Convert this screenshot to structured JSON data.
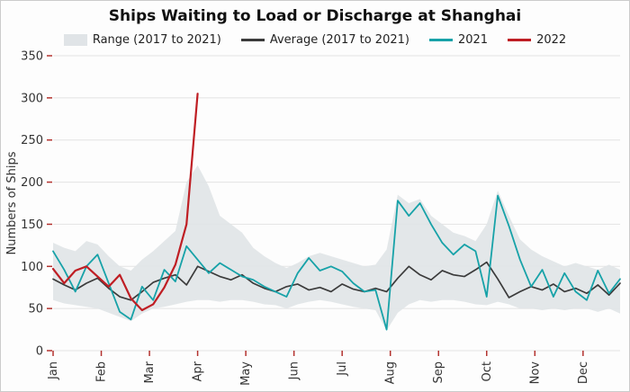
{
  "chart_data": {
    "type": "line",
    "title": "Ships Waiting to Load or Discharge at Shanghai",
    "ylabel": "Numbers of Ships",
    "ylim": [
      0,
      350
    ],
    "yticks": [
      0,
      50,
      100,
      150,
      200,
      250,
      300,
      350
    ],
    "x_tick_labels": [
      "Jan",
      "Feb",
      "Mar",
      "Apr",
      "May",
      "Jun",
      "Jul",
      "Aug",
      "Sep",
      "Oct",
      "Nov",
      "Dec"
    ],
    "legend_position": "top",
    "grid": "horizontal",
    "colors": {
      "band": "#e0e4e7",
      "average": "#3b3b3b",
      "y2021": "#17a2a8",
      "y2022": "#bf1e24",
      "tick": "#b3322e",
      "grid": "#e3e3e3",
      "text": "#333333"
    },
    "band": {
      "name": "Range (2017 to 2021)",
      "max": [
        128,
        122,
        118,
        130,
        126,
        112,
        100,
        95,
        108,
        118,
        130,
        142,
        200,
        220,
        195,
        160,
        150,
        140,
        122,
        112,
        104,
        98,
        104,
        112,
        116,
        112,
        108,
        104,
        100,
        102,
        120,
        185,
        175,
        180,
        160,
        150,
        140,
        136,
        130,
        150,
        190,
        160,
        132,
        120,
        112,
        106,
        100,
        104,
        100,
        96,
        102,
        96
      ],
      "min": [
        60,
        56,
        54,
        52,
        50,
        45,
        40,
        35,
        44,
        50,
        52,
        55,
        58,
        60,
        60,
        58,
        60,
        60,
        58,
        55,
        54,
        50,
        55,
        58,
        60,
        58,
        55,
        52,
        50,
        48,
        24,
        45,
        55,
        60,
        58,
        60,
        60,
        58,
        55,
        54,
        58,
        55,
        50,
        50,
        48,
        50,
        48,
        50,
        50,
        46,
        50,
        44
      ]
    },
    "series": [
      {
        "name": "Average (2017 to 2021)",
        "color_key": "average",
        "width": 1.7,
        "values": [
          85,
          78,
          72,
          80,
          86,
          74,
          64,
          60,
          70,
          81,
          86,
          90,
          78,
          100,
          94,
          88,
          84,
          90,
          80,
          74,
          70,
          76,
          79,
          72,
          75,
          70,
          79,
          73,
          70,
          74,
          70,
          86,
          100,
          90,
          84,
          95,
          90,
          88,
          96,
          105,
          85,
          63,
          70,
          76,
          72,
          79,
          70,
          74,
          68,
          78,
          66,
          80
        ]
      },
      {
        "name": "2021",
        "color_key": "y2021",
        "width": 1.8,
        "values": [
          118,
          96,
          70,
          100,
          114,
          80,
          46,
          37,
          76,
          60,
          96,
          82,
          124,
          108,
          92,
          104,
          96,
          88,
          84,
          76,
          70,
          64,
          92,
          110,
          95,
          100,
          94,
          80,
          70,
          72,
          25,
          178,
          160,
          175,
          150,
          128,
          114,
          126,
          118,
          64,
          184,
          148,
          108,
          76,
          96,
          64,
          92,
          70,
          60,
          95,
          68,
          85
        ]
      },
      {
        "name": "2022",
        "color_key": "y2022",
        "width": 2.2,
        "values": [
          97,
          80,
          95,
          100,
          88,
          76,
          90,
          62,
          48,
          55,
          75,
          102,
          150,
          305
        ]
      }
    ]
  }
}
